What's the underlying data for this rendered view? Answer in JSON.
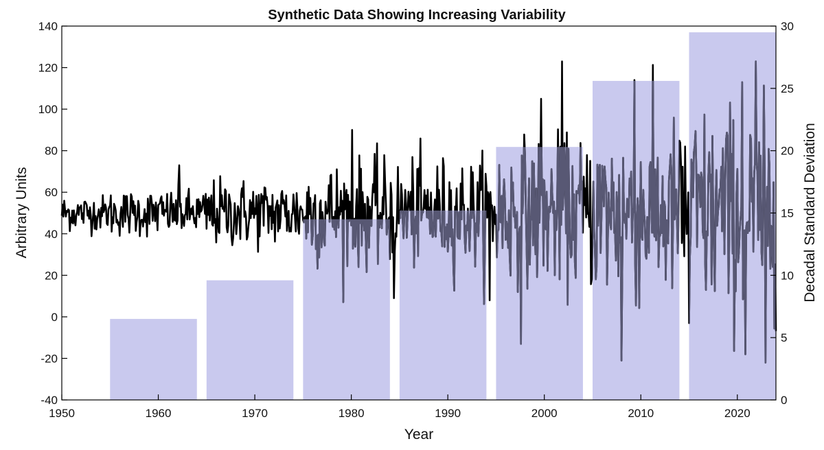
{
  "chart_data": {
    "type": "bar",
    "title": "Synthetic Data Showing Increasing Variability",
    "xlabel": "Year",
    "ylabel": "Arbitrary Units",
    "ylabel_right": "Decadal Standard Deviation",
    "xlim": [
      1950,
      2024
    ],
    "ylim": [
      -40,
      140
    ],
    "ylim_right": [
      0,
      30
    ],
    "x_ticks": [
      1950,
      1960,
      1970,
      1980,
      1990,
      2000,
      2010,
      2020
    ],
    "y_ticks": [
      -40,
      -20,
      0,
      20,
      40,
      60,
      80,
      100,
      120,
      140
    ],
    "y_ticks_right": [
      0,
      5,
      10,
      15,
      20,
      25,
      30
    ],
    "grid": false,
    "colors": {
      "bars": "#c9c9ee",
      "line": "#000000",
      "line_over_bars": "#585874"
    },
    "bars": {
      "axis": "right",
      "x_start": [
        1955,
        1965,
        1975,
        1985,
        1995,
        2005,
        2015
      ],
      "x_end": [
        1964,
        1974,
        1984,
        1994,
        2004,
        2014,
        2024
      ],
      "values": [
        6.5,
        9.6,
        14.5,
        15.2,
        20.3,
        25.6,
        29.5
      ]
    },
    "line_series": {
      "axis": "left",
      "x_start": 1950,
      "x_end": 2024,
      "baseline": 50,
      "std_by_decade": [
        {
          "from": 1950,
          "to": 1955,
          "std": 5
        },
        {
          "from": 1955,
          "to": 1965,
          "std": 6.5
        },
        {
          "from": 1965,
          "to": 1975,
          "std": 9.6
        },
        {
          "from": 1975,
          "to": 1985,
          "std": 14.5
        },
        {
          "from": 1985,
          "to": 1995,
          "std": 15.2
        },
        {
          "from": 1995,
          "to": 2005,
          "std": 20.3
        },
        {
          "from": 2005,
          "to": 2015,
          "std": 25.6
        },
        {
          "from": 2015,
          "to": 2024,
          "std": 29.5
        }
      ],
      "peaks": [
        {
          "x": 1962.2,
          "y": 73
        },
        {
          "x": 1980.1,
          "y": 90
        },
        {
          "x": 2001.8,
          "y": 123
        },
        {
          "x": 1999.7,
          "y": 105
        },
        {
          "x": 2009.3,
          "y": 114
        },
        {
          "x": 2021.9,
          "y": 123
        },
        {
          "x": 2020.5,
          "y": 113
        },
        {
          "x": 1984.4,
          "y": 9
        },
        {
          "x": 1994.3,
          "y": 8
        },
        {
          "x": 1997.6,
          "y": -13
        },
        {
          "x": 2008.0,
          "y": -21
        },
        {
          "x": 2015.0,
          "y": -3
        },
        {
          "x": 2020.8,
          "y": -18
        },
        {
          "x": 2022.9,
          "y": -22
        }
      ]
    }
  }
}
